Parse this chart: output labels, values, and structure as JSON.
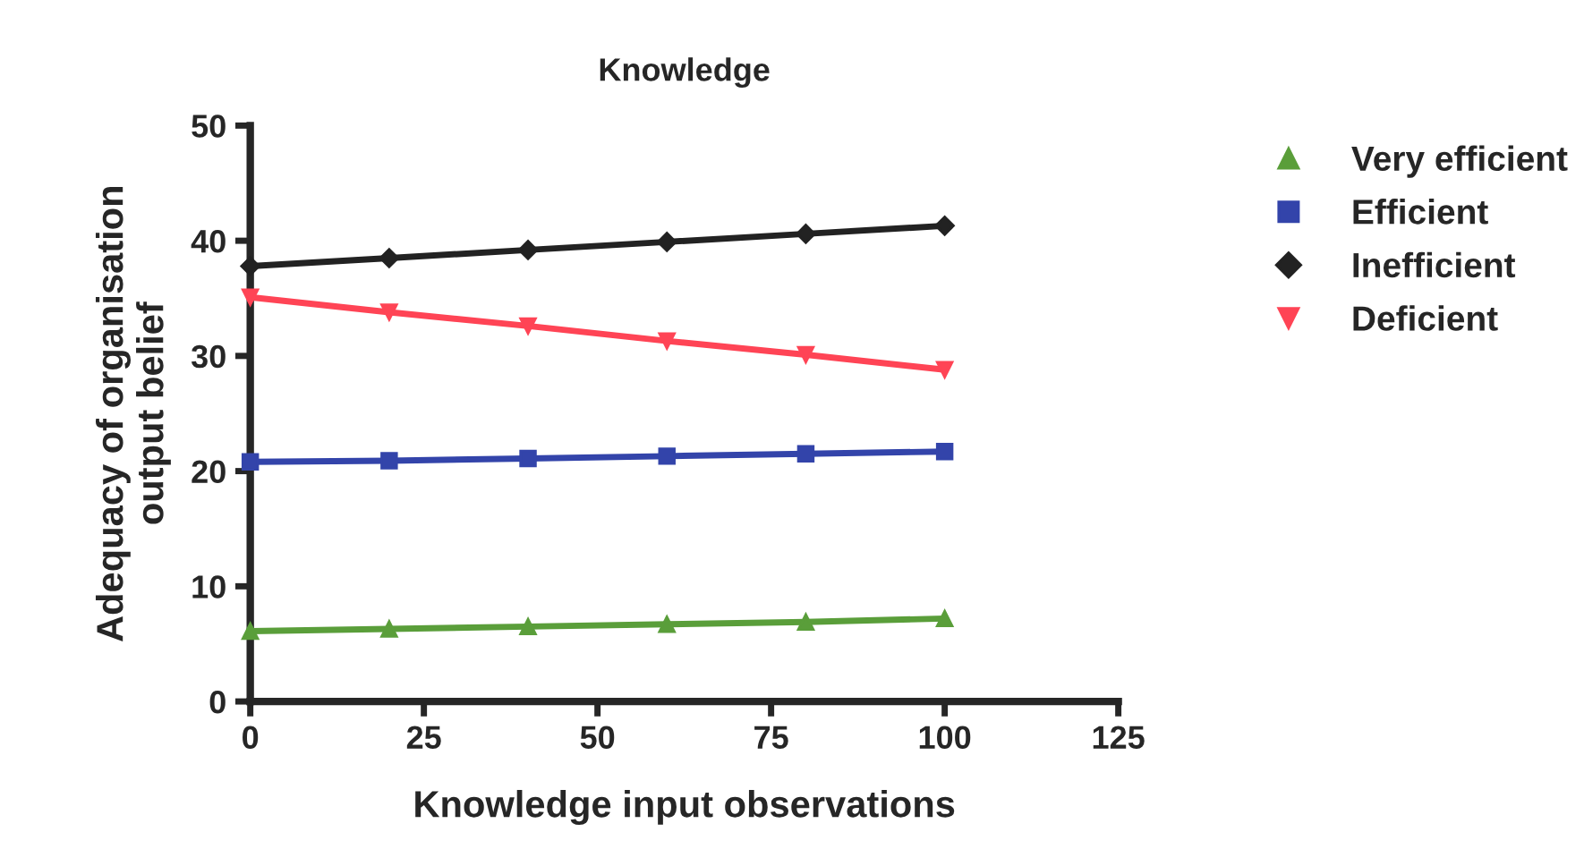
{
  "chart_data": {
    "type": "line",
    "title": "Knowledge",
    "xlabel": "Knowledge input observations",
    "ylabel": "Adequacy of organisation\noutput belief",
    "x": [
      0,
      20,
      40,
      60,
      80,
      100
    ],
    "series": [
      {
        "name": "Very efficient",
        "color": "#5a9e3a",
        "marker": "triangle",
        "values": [
          6.1,
          6.3,
          6.5,
          6.7,
          6.9,
          7.2
        ]
      },
      {
        "name": "Efficient",
        "color": "#3344aa",
        "marker": "square",
        "values": [
          20.8,
          20.9,
          21.1,
          21.3,
          21.5,
          21.7
        ]
      },
      {
        "name": "Inefficient",
        "color": "#222222",
        "marker": "diamond",
        "values": [
          37.8,
          38.5,
          39.2,
          39.9,
          40.6,
          41.3
        ]
      },
      {
        "name": "Deficient",
        "color": "#ff4455",
        "marker": "triangle_down",
        "values": [
          35.1,
          33.8,
          32.6,
          31.3,
          30.1,
          28.8
        ]
      }
    ],
    "xlim": [
      0,
      125
    ],
    "ylim": [
      0,
      50
    ],
    "xticks": [
      0,
      25,
      50,
      75,
      100,
      125
    ],
    "yticks": [
      0,
      10,
      20,
      30,
      40,
      50
    ],
    "legend": "right",
    "grid": false
  }
}
